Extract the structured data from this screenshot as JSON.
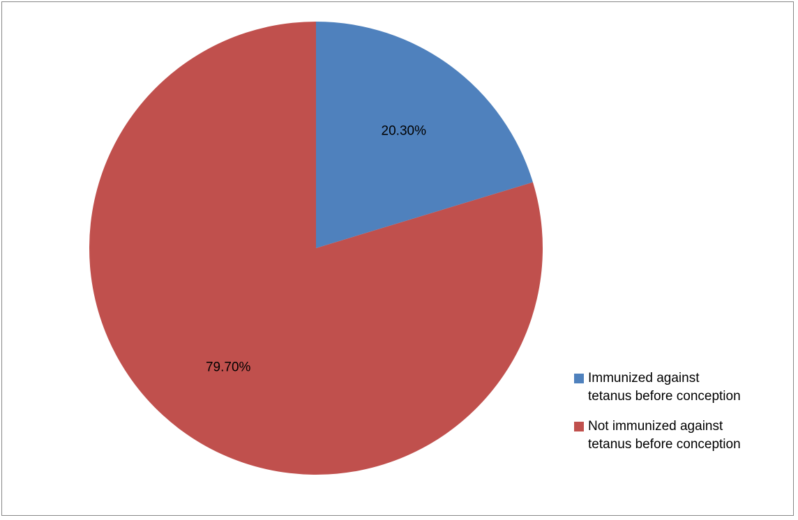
{
  "chart_data": {
    "type": "pie",
    "title": "",
    "slices": [
      {
        "label": "Immunized against\ntetanus before conception",
        "value": 20.3,
        "display": "20.30%",
        "color": "#4F81BD"
      },
      {
        "label": "Not immunized against\ntetanus before conception",
        "value": 79.7,
        "display": "79.70%",
        "color": "#C0504D"
      }
    ],
    "legend_position": "right"
  }
}
